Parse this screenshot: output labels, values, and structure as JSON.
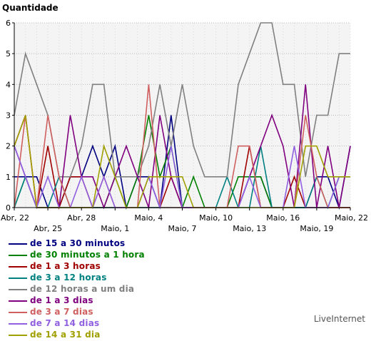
{
  "chart_data": {
    "type": "line",
    "title": "Quantidade",
    "ylim": [
      0,
      6
    ],
    "yticks": [
      0,
      1,
      2,
      3,
      4,
      5,
      6
    ],
    "grid": true,
    "legend_position": "bottom-left",
    "x": [
      "Abr, 22",
      "Abr, 23",
      "Abr, 24",
      "Abr, 25",
      "Abr, 26",
      "Abr, 27",
      "Abr, 28",
      "Abr, 29",
      "Abr, 30",
      "Maio, 1",
      "Maio, 2",
      "Maio, 3",
      "Maio, 4",
      "Maio, 5",
      "Maio, 6",
      "Maio, 7",
      "Maio, 8",
      "Maio, 9",
      "Maio, 10",
      "Maio, 11",
      "Maio, 12",
      "Maio, 13",
      "Maio, 14",
      "Maio, 15",
      "Maio, 16",
      "Maio, 17",
      "Maio, 18",
      "Maio, 19",
      "Maio, 20",
      "Maio, 21",
      "Maio, 22"
    ],
    "tick_labels": [
      {
        "index": 0,
        "label": "Abr, 22",
        "row": 1
      },
      {
        "index": 3,
        "label": "Abr, 25",
        "row": 2
      },
      {
        "index": 6,
        "label": "Abr, 28",
        "row": 1
      },
      {
        "index": 9,
        "label": "Maio, 1",
        "row": 2
      },
      {
        "index": 12,
        "label": "Maio, 4",
        "row": 1
      },
      {
        "index": 15,
        "label": "Maio, 7",
        "row": 2
      },
      {
        "index": 18,
        "label": "Maio, 10",
        "row": 1
      },
      {
        "index": 21,
        "label": "Maio, 13",
        "row": 2
      },
      {
        "index": 24,
        "label": "Maio, 16",
        "row": 1
      },
      {
        "index": 27,
        "label": "Maio, 19",
        "row": 2
      },
      {
        "index": 30,
        "label": "Maio, 22",
        "row": 1
      }
    ],
    "series": [
      {
        "name": "de 15 a 30 minutos",
        "color": "#000080",
        "values": [
          1,
          1,
          1,
          0,
          0,
          1,
          1,
          2,
          1,
          2,
          0,
          1,
          1,
          0,
          3,
          0,
          0,
          0,
          0,
          0,
          0,
          1,
          1,
          0,
          0,
          0,
          0,
          1,
          1,
          0,
          2
        ]
      },
      {
        "name": "de 30 minutos a 1 hora",
        "color": "#008000",
        "values": [
          0,
          1,
          0,
          0,
          0,
          0,
          0,
          0,
          0,
          1,
          0,
          1,
          3,
          1,
          2,
          0,
          1,
          0,
          0,
          0,
          1,
          1,
          1,
          0,
          0,
          0,
          0,
          0,
          0,
          0,
          0
        ]
      },
      {
        "name": "de 1 a 3 horas",
        "color": "#a00000",
        "values": [
          2,
          3,
          0,
          2,
          0,
          1,
          1,
          0,
          0,
          0,
          0,
          0,
          0,
          0,
          1,
          0,
          0,
          0,
          0,
          0,
          0,
          2,
          0,
          0,
          0,
          1,
          0,
          0,
          0,
          0,
          0
        ]
      },
      {
        "name": "de 3 a 12 horas",
        "color": "#008080",
        "values": [
          0,
          1,
          0,
          0,
          1,
          0,
          0,
          0,
          0,
          0,
          0,
          0,
          0,
          0,
          0,
          0,
          0,
          0,
          0,
          1,
          0,
          0,
          2,
          0,
          0,
          0,
          0,
          1,
          0,
          1,
          1
        ]
      },
      {
        "name": "de 12 horas a um dia",
        "color": "#808080",
        "values": [
          3,
          5,
          4,
          3,
          1,
          1,
          2,
          4,
          4,
          1,
          1,
          1,
          2,
          4,
          2,
          4,
          2,
          1,
          1,
          1,
          4,
          5,
          6,
          6,
          4,
          4,
          1,
          3,
          3,
          5,
          5
        ]
      },
      {
        "name": "de 1 a 3 dias",
        "color": "#800080",
        "values": [
          2,
          1,
          0,
          0,
          0,
          3,
          1,
          1,
          0,
          1,
          2,
          1,
          0,
          3,
          1,
          0,
          0,
          0,
          0,
          0,
          0,
          1,
          2,
          3,
          2,
          0,
          4,
          0,
          2,
          0,
          2
        ]
      },
      {
        "name": "de 3 a 7 dias",
        "color": "#d06060",
        "values": [
          0,
          3,
          0,
          3,
          1,
          0,
          0,
          0,
          1,
          0,
          0,
          0,
          4,
          0,
          0,
          0,
          0,
          0,
          0,
          0,
          2,
          2,
          0,
          0,
          0,
          0,
          3,
          1,
          0,
          0,
          0
        ]
      },
      {
        "name": "de 7 a 14 dias",
        "color": "#9060e0",
        "values": [
          2,
          1,
          0,
          1,
          0,
          0,
          1,
          0,
          1,
          0,
          0,
          0,
          1,
          0,
          2,
          0,
          0,
          0,
          0,
          0,
          0,
          1,
          0,
          0,
          0,
          2,
          0,
          0,
          0,
          1,
          1
        ]
      },
      {
        "name": "de 14 a 31 dia",
        "color": "#a0a000",
        "values": [
          2,
          3,
          0,
          0,
          0,
          0,
          0,
          0,
          2,
          1,
          0,
          0,
          1,
          1,
          1,
          1,
          0,
          0,
          0,
          0,
          0,
          0,
          0,
          0,
          0,
          0,
          2,
          2,
          1,
          1,
          1
        ]
      }
    ]
  },
  "footer": {
    "credit": "LiveInternet"
  }
}
